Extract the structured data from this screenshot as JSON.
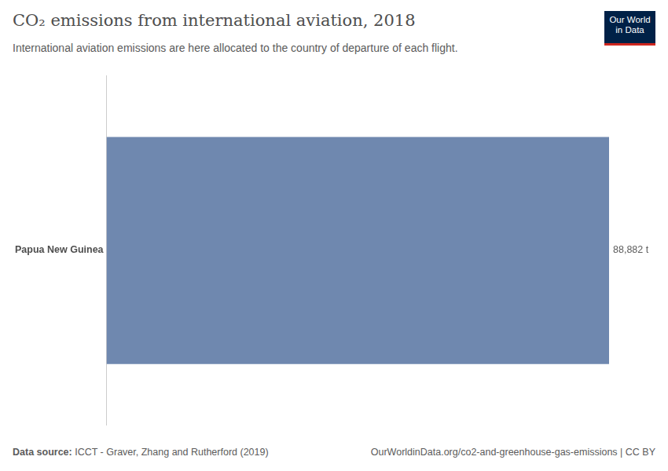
{
  "chart_data": {
    "type": "bar",
    "orientation": "horizontal",
    "title": "CO₂ emissions from international aviation, 2018",
    "subtitle": "International aviation emissions are here allocated to the country of departure of each flight.",
    "categories": [
      "Papua New Guinea"
    ],
    "values": [
      88882
    ],
    "value_labels": [
      "88,882 t"
    ],
    "data_labels": true,
    "color": "#6f88af",
    "xlim": [
      0,
      88882
    ],
    "grid": false,
    "tick_labels": "y",
    "source_label": "Data source:",
    "source": "ICCT - Graver, Zhang and Rutherford (2019)",
    "url": "OurWorldinData.org/co2-and-greenhouse-gas-emissions | CC BY",
    "logo": [
      "Our World",
      "in Data"
    ]
  }
}
